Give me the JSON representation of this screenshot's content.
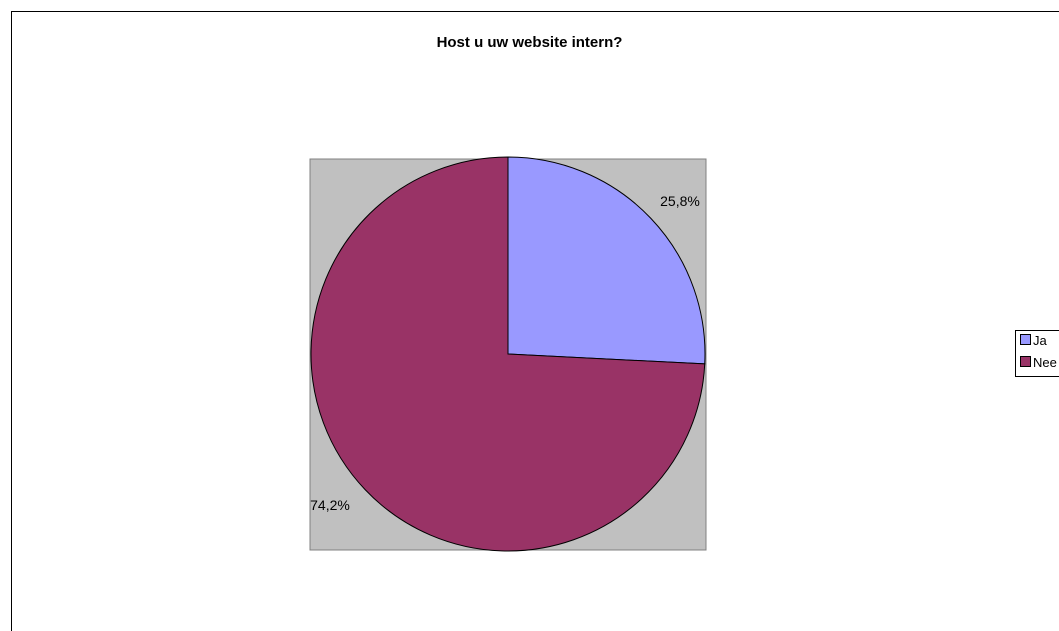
{
  "chart_data": {
    "type": "pie",
    "title": "Host u uw website intern?",
    "categories": [
      "Ja",
      "Nee"
    ],
    "values": [
      25.8,
      74.2
    ],
    "data_labels": [
      "25,8%",
      "74,2%"
    ],
    "colors": [
      "#9999ff",
      "#993366"
    ],
    "plot_background": "#c0c0c0",
    "legend_position": "right"
  }
}
